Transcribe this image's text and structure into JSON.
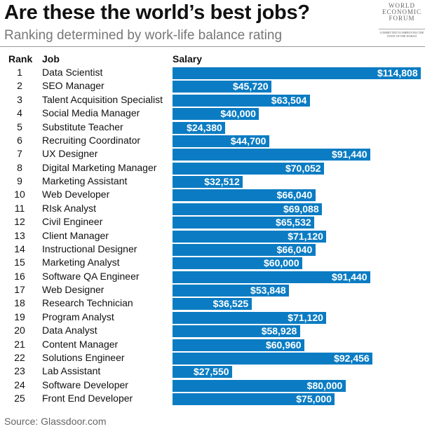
{
  "title": "Are these the world’s best jobs?",
  "subtitle": "Ranking determined by work-life balance rating",
  "logo": {
    "line1": "WORLD",
    "line2": "ECONOMIC",
    "line3": "FORUM",
    "tagline": "COMMITTED TO IMPROVING THE STATE OF THE WORLD"
  },
  "source": "Source: Glassdoor.com",
  "colors": {
    "bar": "#0b7cc3"
  },
  "chart_data": {
    "type": "bar",
    "orientation": "horizontal",
    "headers": {
      "rank": "Rank",
      "job": "Job",
      "salary": "Salary"
    },
    "ranks": [
      1,
      2,
      3,
      4,
      5,
      6,
      7,
      8,
      9,
      10,
      11,
      12,
      13,
      14,
      15,
      16,
      17,
      18,
      19,
      20,
      21,
      22,
      23,
      24,
      25
    ],
    "categories": [
      "Data Scientist",
      "SEO Manager",
      "Talent Acquisition Specialist",
      "Social Media Manager",
      "Substitute Teacher",
      "Recruiting Coordinator",
      "UX Designer",
      "Digital Marketing Manager",
      "Marketing Assistant",
      "Web Developer",
      "RIsk Analyst",
      "Civil Engineer",
      "Client Manager",
      "Instructional Designer",
      "Marketing Analyst",
      "Software QA Engineer",
      "Web Designer",
      "Research Technician",
      "Program Analyst",
      "Data Analyst",
      "Content Manager",
      "Solutions Engineer",
      "Lab Assistant",
      "Software Developer",
      "Front End Developer"
    ],
    "values": [
      114808,
      45720,
      63504,
      40000,
      24380,
      44700,
      91440,
      70052,
      32512,
      66040,
      69088,
      65532,
      71120,
      66040,
      60000,
      91440,
      53848,
      36525,
      71120,
      58928,
      60960,
      92456,
      27550,
      80000,
      75000
    ],
    "labels": [
      "$114,808",
      "$45,720",
      "$63,504",
      "$40,000",
      "$24,380",
      "$44,700",
      "$91,440",
      "$70,052",
      "$32,512",
      "$66,040",
      "$69,088",
      "$65,532",
      "$71,120",
      "$66,040",
      "$60,000",
      "$91,440",
      "$53,848",
      "$36,525",
      "$71,120",
      "$58,928",
      "$60,960",
      "$92,456",
      "$27,550",
      "$80,000",
      "$75,000"
    ],
    "xlim": [
      0,
      114808
    ],
    "grid": false
  }
}
